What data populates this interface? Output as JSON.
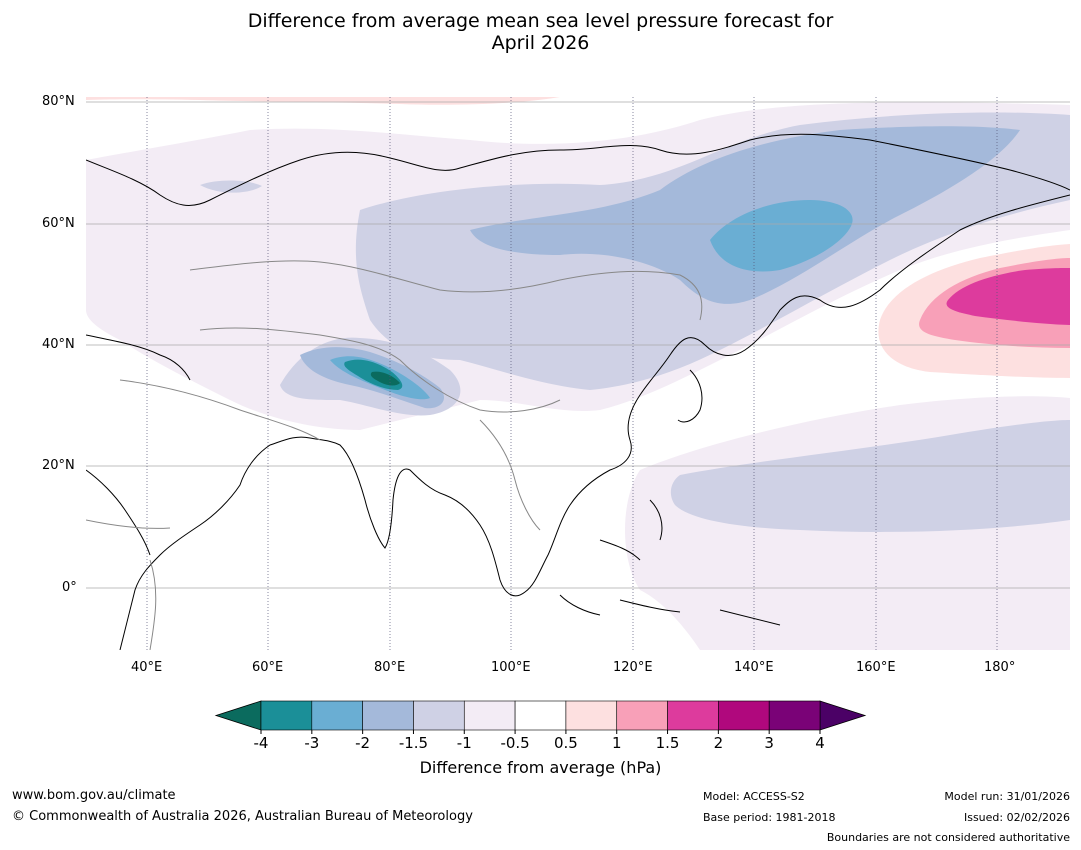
{
  "title_line1": "Difference from average mean sea level pressure forecast for",
  "title_line2": "April 2026",
  "lat_labels": [
    "80°N",
    "60°N",
    "40°N",
    "20°N",
    "0°"
  ],
  "lon_labels": [
    "40°E",
    "60°E",
    "80°E",
    "100°E",
    "120°E",
    "140°E",
    "160°E",
    "180°"
  ],
  "colorbar": {
    "label": "Difference from average (hPa)",
    "ticks": [
      "-4",
      "-3",
      "-2",
      "-1.5",
      "-1",
      "-0.5",
      "0.5",
      "1",
      "1.5",
      "2",
      "3",
      "4"
    ],
    "colors": [
      "#1b8f98",
      "#6aaed3",
      "#a4b9da",
      "#cfd1e5",
      "#f3ecf5",
      "#ffffff",
      "#fde0e0",
      "#f8a0b8",
      "#dd3b9d",
      "#b0087d",
      "#7a0277"
    ],
    "low_extend_color": "#0b6b5e",
    "high_extend_color": "#4b0166"
  },
  "footer": {
    "website": "www.bom.gov.au/climate",
    "copyright": "© Commonwealth of Australia 2026, Australian Bureau of Meteorology",
    "model": "Model: ACCESS-S2",
    "base_period": "Base period: 1981-2018",
    "model_run": "Model run: 31/01/2026",
    "issued": "Issued: 02/02/2026",
    "boundaries": "Boundaries are not considered authoritative"
  }
}
